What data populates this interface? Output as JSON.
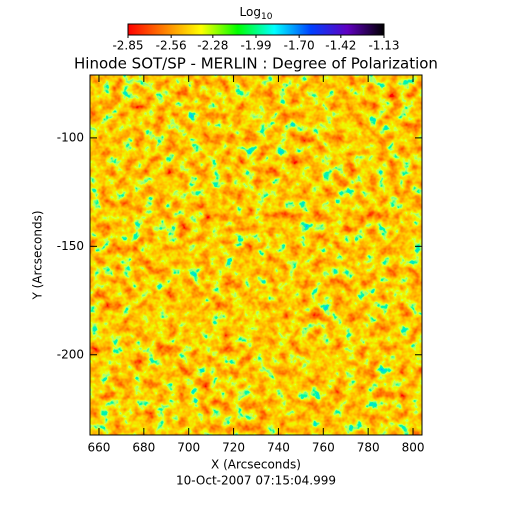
{
  "chart_data": {
    "type": "heatmap",
    "title": "Hinode SOT/SP - MERLIN : Degree of Polarization",
    "xlabel": "X (Arcseconds)",
    "ylabel": "Y (Arcseconds)",
    "footer": "10-Oct-2007 07:15:04.999",
    "colorbar": {
      "label": {
        "text": "Log",
        "subscript": "10"
      },
      "clim": [
        -2.85,
        -1.13
      ],
      "ticks": [
        -2.85,
        -2.56,
        -2.28,
        -1.99,
        {
          "value": -1.7,
          "label": "-1.70"
        },
        -1.42,
        -1.13
      ],
      "colors": [
        "#ff0000",
        "#ff8000",
        "#ffff00",
        "#00ff00",
        "#00ffff",
        "#0040ff",
        "#6000c0",
        "#000000"
      ]
    },
    "xlim": [
      656,
      804
    ],
    "xticks": [
      660,
      680,
      700,
      720,
      740,
      760,
      780,
      800
    ],
    "ylim": [
      -237,
      -71
    ],
    "yticks": [
      -100,
      -150,
      -200
    ]
  }
}
